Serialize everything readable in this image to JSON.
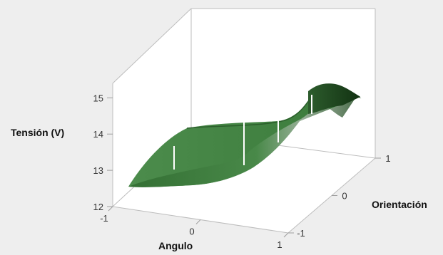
{
  "chart_data": {
    "type": "surface",
    "title": "",
    "zlabel": "Tensión (V)",
    "xlabel": "Angulo",
    "ylabel": "Orientación",
    "xlim": [
      -1,
      1
    ],
    "ylim": [
      -1,
      1
    ],
    "zlim": [
      12,
      15.4
    ],
    "x_ticks": [
      "-1",
      "0",
      "1"
    ],
    "y_ticks": [
      "-1",
      "0",
      "1"
    ],
    "z_ticks": [
      "12",
      "13",
      "14",
      "15"
    ],
    "grid": false,
    "legend": "none",
    "surface_color": "#3b7a3b",
    "background_color": "#eeeeee",
    "plot_panel_color": "#ffffff",
    "surface_samples": [
      {
        "x": -1,
        "y": -1,
        "z": 12.2
      },
      {
        "x": -1,
        "y": 0,
        "z": 13.7
      },
      {
        "x": -1,
        "y": 1,
        "z": 13.9
      },
      {
        "x": 0,
        "y": -1,
        "z": 13.2
      },
      {
        "x": 0,
        "y": 0,
        "z": 13.8
      },
      {
        "x": 0,
        "y": 1,
        "z": 14.1
      },
      {
        "x": 1,
        "y": -1,
        "z": 13.6
      },
      {
        "x": 1,
        "y": 0,
        "z": 14.0
      },
      {
        "x": 1,
        "y": 1,
        "z": 15.3
      }
    ]
  }
}
